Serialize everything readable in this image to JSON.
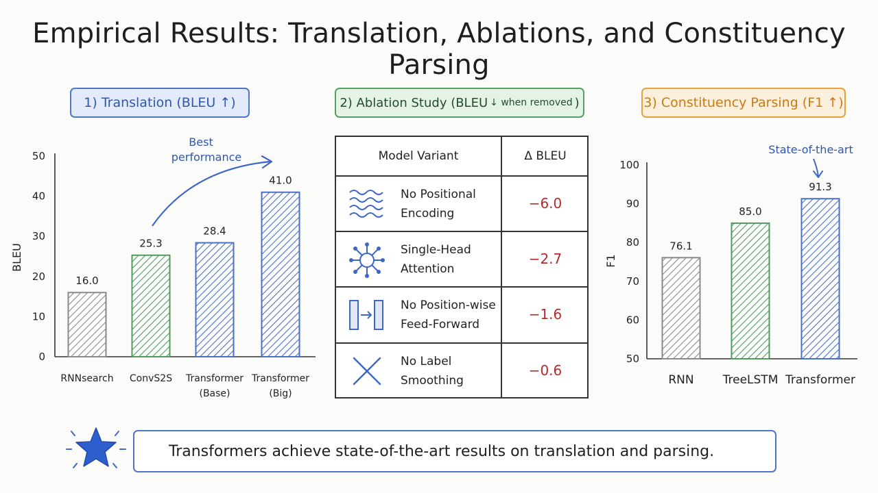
{
  "title": "Empirical Results: Translation, Ablations, and Constituency Parsing",
  "panels": {
    "translation_label": "1) Translation (BLEU ↑)",
    "ablation_label_main": "2) Ablation Study (BLEU",
    "ablation_label_small": "↓ when removed",
    "ablation_label_end": ")",
    "parsing_label": "3) Constituency Parsing (F1 ↑)"
  },
  "chart_data": [
    {
      "type": "bar",
      "ylabel": "BLEU",
      "ylim": [
        0,
        50
      ],
      "yticks": [
        0,
        10,
        20,
        30,
        40,
        50
      ],
      "categories": [
        [
          "RNNsearch"
        ],
        [
          "ConvS2S"
        ],
        [
          "Transformer",
          "(Base)"
        ],
        [
          "Transformer",
          "(Big)"
        ]
      ],
      "values": [
        16.0,
        25.3,
        28.4,
        41.0
      ],
      "value_labels": [
        "16.0",
        "25.3",
        "28.4",
        "41.0"
      ],
      "colors": [
        "#8a8a8a",
        "#4f9a5c",
        "#4a6fc4",
        "#4a6fc4"
      ],
      "annotation": [
        "Best",
        "performance"
      ]
    },
    {
      "type": "table",
      "columns": [
        "Model Variant",
        "Δ BLEU"
      ],
      "rows": [
        {
          "icon": "wave-icon",
          "name": [
            "No Positional",
            "Encoding"
          ],
          "delta": "−6.0"
        },
        {
          "icon": "attention-node-icon",
          "name": [
            "Single-Head",
            "Attention"
          ],
          "delta": "−2.7"
        },
        {
          "icon": "feed-forward-icon",
          "name": [
            "No Position-wise",
            "Feed-Forward"
          ],
          "delta": "−1.6"
        },
        {
          "icon": "cross-icon",
          "name": [
            "No Label",
            "Smoothing"
          ],
          "delta": "−0.6"
        }
      ]
    },
    {
      "type": "bar",
      "ylabel": "F1",
      "ylim": [
        50,
        100
      ],
      "yticks": [
        50,
        60,
        70,
        80,
        90,
        100
      ],
      "categories": [
        [
          "RNN"
        ],
        [
          "TreeLSTM"
        ],
        [
          "Transformer"
        ]
      ],
      "values": [
        76.1,
        85.0,
        91.3
      ],
      "value_labels": [
        "76.1",
        "85.0",
        "91.3"
      ],
      "colors": [
        "#8a8a8a",
        "#4f9a5c",
        "#4a6fc4"
      ],
      "annotation": [
        "State-of-the-art"
      ]
    }
  ],
  "footer": {
    "icon": "star-icon",
    "text": "Transformers achieve state-of-the-art results on translation and parsing."
  }
}
